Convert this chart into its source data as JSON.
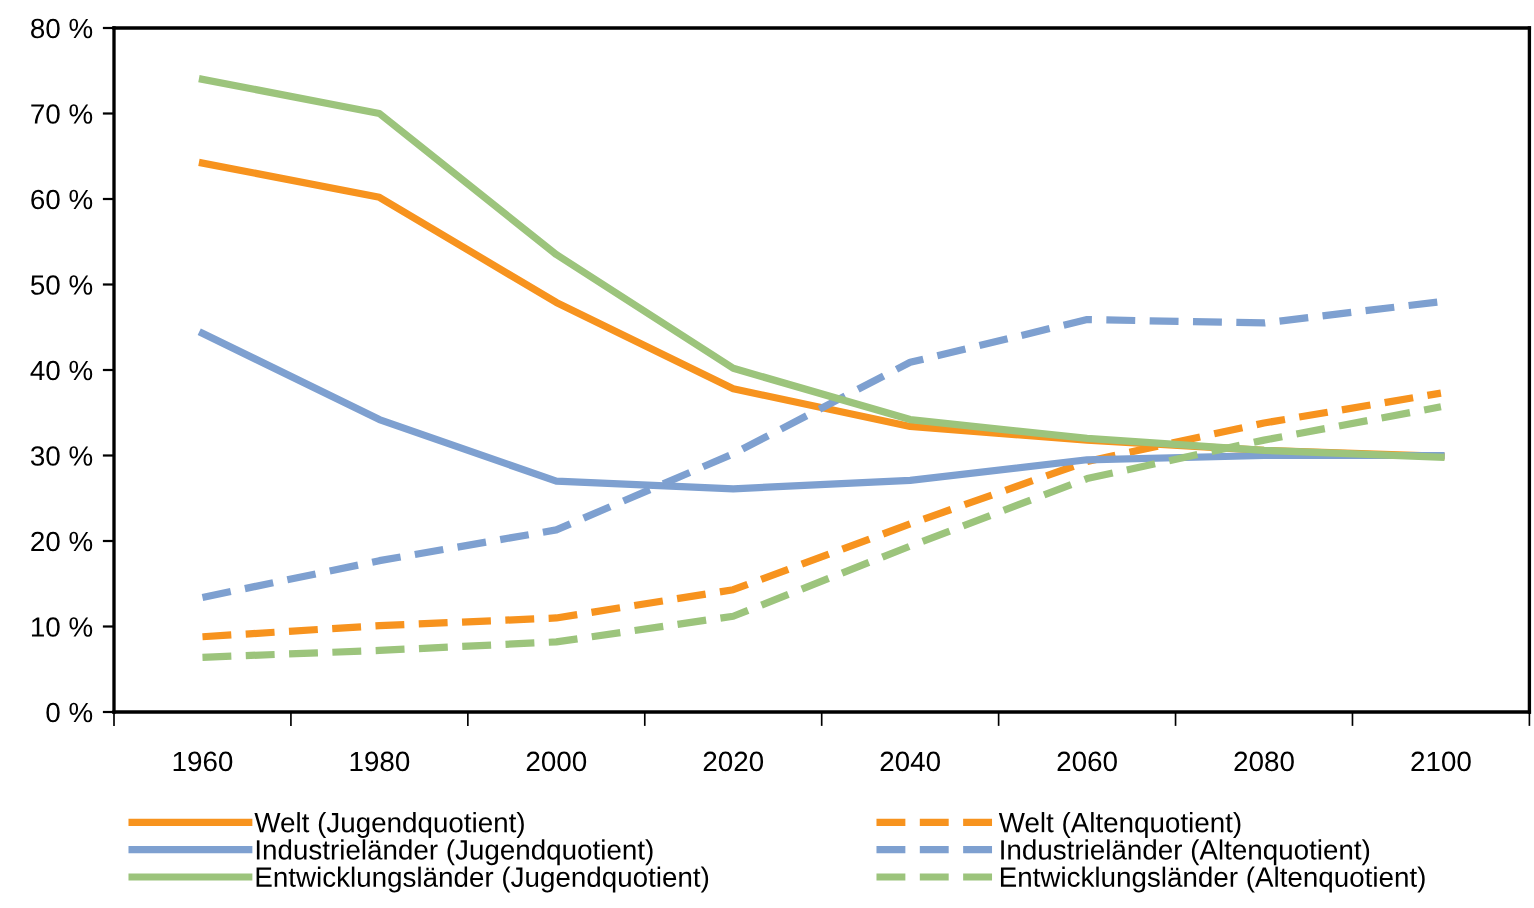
{
  "chart_data": {
    "type": "line",
    "categories": [
      "1960",
      "1980",
      "2000",
      "2020",
      "2040",
      "2060",
      "2080",
      "2100"
    ],
    "series": [
      {
        "name": "Welt (Jugendquotient)",
        "color": "#f7931e",
        "line_style": "solid",
        "values": [
          64.2,
          60.2,
          47.9,
          37.8,
          33.4,
          31.8,
          30.6,
          29.9
        ]
      },
      {
        "name": "Welt (Altenquotient)",
        "color": "#f7931e",
        "line_style": "dashed",
        "values": [
          8.8,
          10.1,
          11.0,
          14.3,
          22.0,
          29.3,
          33.8,
          37.3
        ]
      },
      {
        "name": "Industrieländer (Jugendquotient)",
        "color": "#7ea0d0",
        "line_style": "solid",
        "values": [
          44.3,
          34.2,
          27.0,
          26.1,
          27.1,
          29.5,
          30.0,
          30.0
        ]
      },
      {
        "name": "Industrieländer (Altenquotient)",
        "color": "#7ea0d0",
        "line_style": "dashed",
        "values": [
          13.4,
          17.7,
          21.3,
          30.2,
          40.9,
          45.9,
          45.5,
          48.0
        ]
      },
      {
        "name": "Entwicklungsländer (Jugendquotient)",
        "color": "#9cc47c",
        "line_style": "solid",
        "values": [
          74.0,
          70.0,
          53.5,
          40.2,
          34.2,
          32.0,
          30.6,
          29.8
        ]
      },
      {
        "name": "Entwicklungsländer (Altenquotient)",
        "color": "#9cc47c",
        "line_style": "dashed",
        "values": [
          6.4,
          7.2,
          8.2,
          11.2,
          19.4,
          27.3,
          31.8,
          35.7
        ]
      }
    ],
    "ylim": [
      0,
      80
    ],
    "yticks": [
      {
        "value": 0,
        "label": "0 %"
      },
      {
        "value": 10,
        "label": "10 %"
      },
      {
        "value": 20,
        "label": "20 %"
      },
      {
        "value": 30,
        "label": "30 %"
      },
      {
        "value": 40,
        "label": "40 %"
      },
      {
        "value": 50,
        "label": "50 %"
      },
      {
        "value": 60,
        "label": "60 %"
      },
      {
        "value": 70,
        "label": "70 %"
      },
      {
        "value": 80,
        "label": "80 %"
      }
    ],
    "grid": false,
    "legend": "bottom",
    "marker": "none"
  }
}
